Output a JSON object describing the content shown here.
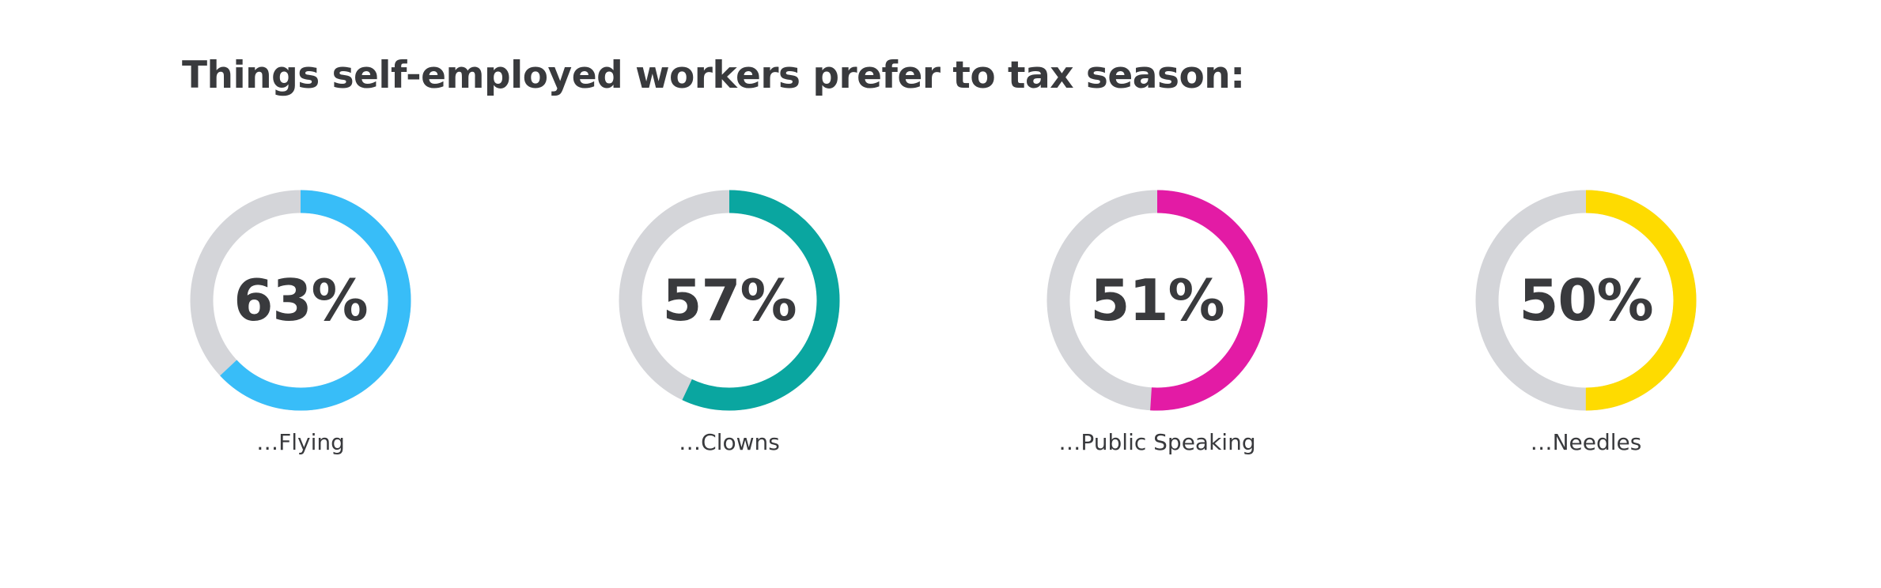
{
  "title": "Things self-employed workers prefer to tax season:",
  "chart_data": {
    "type": "donut",
    "title": "Things self-employed workers prefer to tax season:",
    "track_color": "#d4d5d9",
    "text_color": "#393a3d",
    "items": [
      {
        "label": "…Flying",
        "value": 63,
        "display": "63%",
        "color": "#38bdf8"
      },
      {
        "label": "…Clowns",
        "value": 57,
        "display": "57%",
        "color": "#0aa6a0"
      },
      {
        "label": "…Public Speaking",
        "value": 51,
        "display": "51%",
        "color": "#e31ba5"
      },
      {
        "label": "…Needles",
        "value": 50,
        "display": "50%",
        "color": "#fedb00"
      }
    ]
  }
}
